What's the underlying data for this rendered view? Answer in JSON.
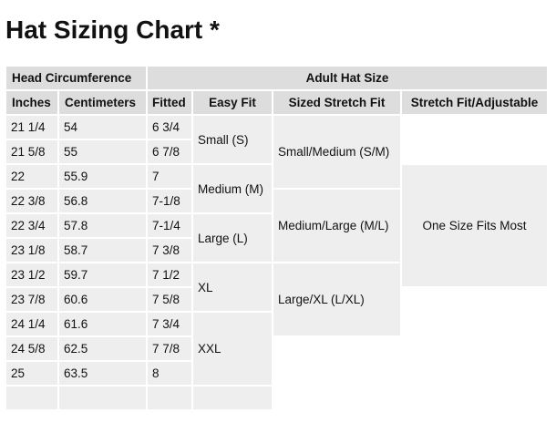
{
  "title": "Hat Sizing Chart *",
  "header": {
    "group1": "Head Circumference",
    "group2": "Adult Hat Size",
    "columns": [
      "Inches",
      "Centimeters",
      "Fitted",
      "Easy Fit",
      "Sized Stretch Fit",
      "Stretch Fit/Adjustable"
    ]
  },
  "rows": [
    [
      "21 1/4",
      "54",
      "6 3/4"
    ],
    [
      "21 5/8",
      "55",
      "6 7/8"
    ],
    [
      "22",
      "55.9",
      "7"
    ],
    [
      "22 3/8",
      "56.8",
      "7-1/8"
    ],
    [
      "22 3/4",
      "57.8",
      "7-1/4"
    ],
    [
      "23 1/8",
      "58.7",
      "7 3/8"
    ],
    [
      "23 1/2",
      "59.7",
      "7 1/2"
    ],
    [
      "23 7/8",
      "60.6",
      "7 5/8"
    ],
    [
      "24 1/4",
      "61.6",
      "7 3/4"
    ],
    [
      "24 5/8",
      "62.5",
      "7 7/8"
    ],
    [
      "25",
      "63.5",
      "8"
    ]
  ],
  "easy_fit": [
    "Small (S)",
    "Medium (M)",
    "Large (L)",
    "XL",
    "XXL"
  ],
  "sized_stretch": [
    "Small/Medium (S/M)",
    "Medium/Large (M/L)",
    "Large/XL (L/XL)"
  ],
  "stretch_adjustable": "One Size Fits Most"
}
